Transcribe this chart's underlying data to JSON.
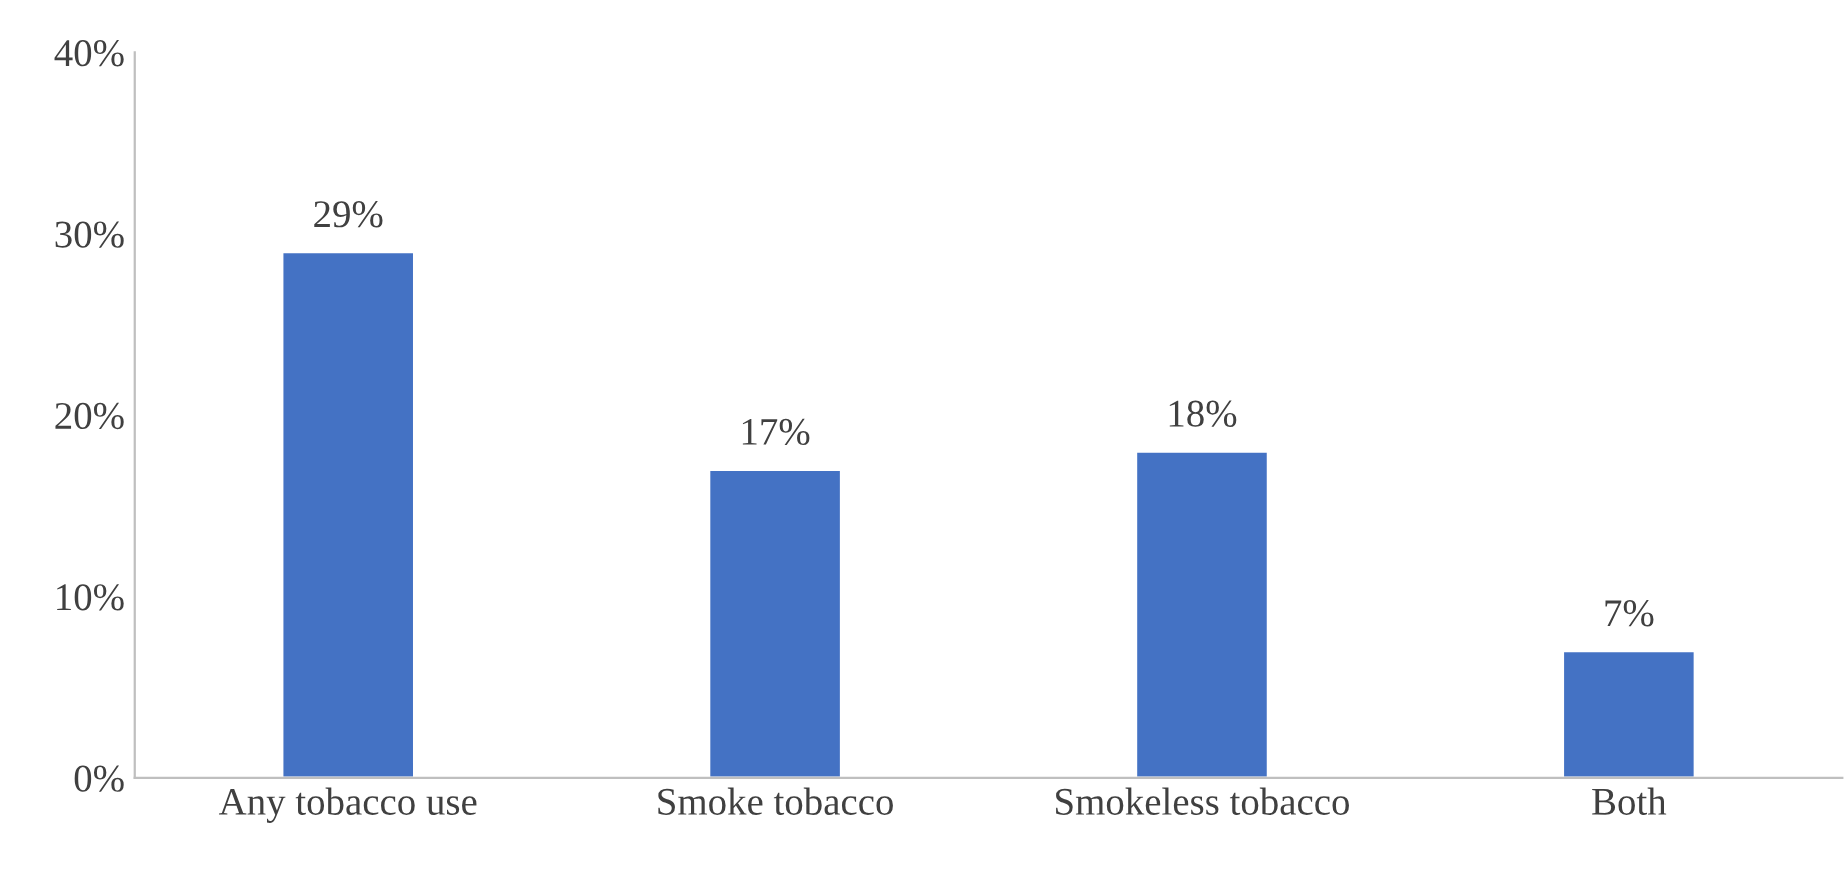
{
  "chart_data": {
    "type": "bar",
    "categories": [
      "Any tobacco use",
      "Smoke tobacco",
      "Smokeless tobacco",
      "Both"
    ],
    "values": [
      29,
      17,
      18,
      7
    ],
    "color": "#4472c4",
    "ylim": [
      0,
      40
    ],
    "yticks": [
      {
        "value": 0,
        "label": "0%"
      },
      {
        "value": 10,
        "label": "10%"
      },
      {
        "value": 20,
        "label": "20%"
      },
      {
        "value": 30,
        "label": "30%"
      },
      {
        "value": 40,
        "label": "40%"
      }
    ],
    "data_labels": true,
    "value_labels": [
      "29%",
      "17%",
      "18%",
      "7%"
    ],
    "grid": false,
    "legend": false
  }
}
